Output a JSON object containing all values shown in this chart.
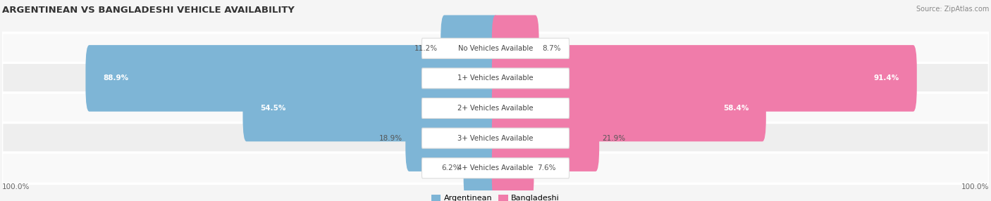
{
  "title": "ARGENTINEAN VS BANGLADESHI VEHICLE AVAILABILITY",
  "source": "Source: ZipAtlas.com",
  "categories": [
    "No Vehicles Available",
    "1+ Vehicles Available",
    "2+ Vehicles Available",
    "3+ Vehicles Available",
    "4+ Vehicles Available"
  ],
  "argentinean": [
    11.2,
    88.9,
    54.5,
    18.9,
    6.2
  ],
  "bangladeshi": [
    8.7,
    91.4,
    58.4,
    21.9,
    7.6
  ],
  "arg_color": "#7eb5d6",
  "ban_color": "#f07caa",
  "bg_color": "#f5f5f5",
  "row_bg_odd": "#eeeeee",
  "row_bg_even": "#f9f9f9",
  "title_color": "#333333",
  "source_color": "#888888",
  "figsize": [
    14.06,
    2.86
  ],
  "dpi": 100,
  "max_val": 100,
  "bar_height": 0.62,
  "inside_label_threshold": 30
}
